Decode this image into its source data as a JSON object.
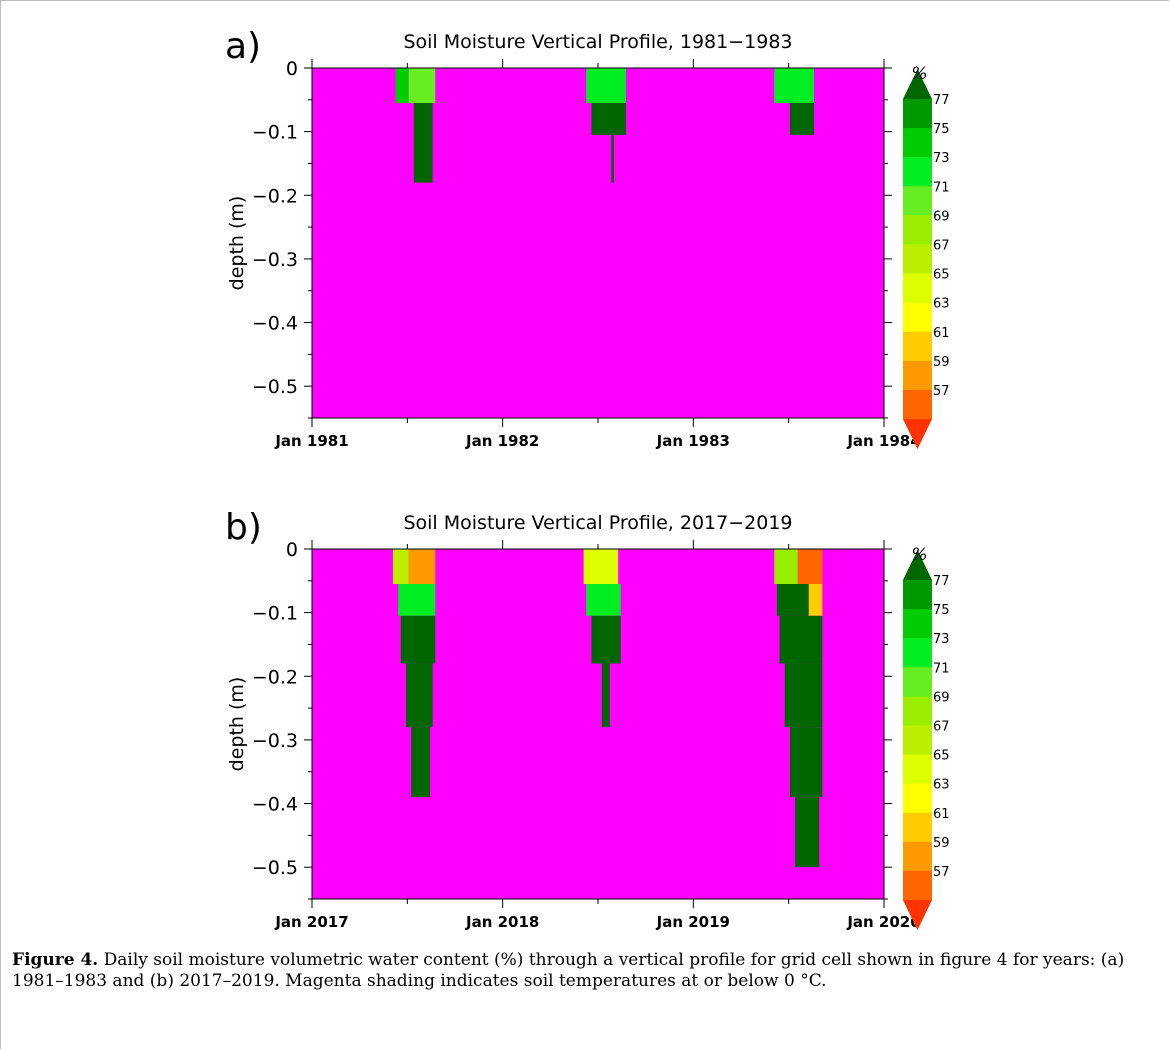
{
  "colors": {
    "frozen": "#ff00ff",
    "scale": [
      "#ff3300",
      "#ff6600",
      "#ff9900",
      "#ffcc00",
      "#ffff00",
      "#ddff00",
      "#bbee00",
      "#99ee00",
      "#66ee22",
      "#00ee22",
      "#00cc00",
      "#009900",
      "#006600"
    ]
  },
  "panels": [
    {
      "label": "a)",
      "title": "Soil Moisture Vertical Profile, 1981−1983",
      "ylabel": "depth (m)",
      "xticks": [
        "Jan 1981",
        "Jan 1982",
        "Jan 1983",
        "Jan 1984"
      ],
      "yticks": [
        "0",
        "−0.1",
        "−0.2",
        "−0.3",
        "−0.4",
        "−0.5"
      ],
      "ytick_values": [
        0,
        -0.1,
        -0.2,
        -0.3,
        -0.4,
        -0.5
      ],
      "colorbar_unit": "%",
      "colorbar_labels": [
        "77",
        "75",
        "73",
        "71",
        "69",
        "67",
        "65",
        "63",
        "61",
        "59",
        "57"
      ]
    },
    {
      "label": "b)",
      "title": "Soil Moisture Vertical Profile, 2017−2019",
      "ylabel": "depth (m)",
      "xticks": [
        "Jan 2017",
        "Jan 2018",
        "Jan 2019",
        "Jan 2020"
      ],
      "yticks": [
        "0",
        "−0.1",
        "−0.2",
        "−0.3",
        "−0.4",
        "−0.5"
      ],
      "ytick_values": [
        0,
        -0.1,
        -0.2,
        -0.3,
        -0.4,
        -0.5
      ],
      "colorbar_unit": "%",
      "colorbar_labels": [
        "77",
        "75",
        "73",
        "71",
        "69",
        "67",
        "65",
        "63",
        "61",
        "59",
        "57"
      ]
    }
  ],
  "chart_data": [
    {
      "type": "heatmap",
      "title": "Soil Moisture Vertical Profile, 1981−1983",
      "ylabel": "depth (m)",
      "x_range": [
        "1981-01-01",
        "1984-01-01"
      ],
      "ylim": [
        -0.55,
        0
      ],
      "cells": [
        {
          "x0": "1981-06-10",
          "x1": "1981-07-05",
          "y0": -0.055,
          "y1": 0,
          "value": 76
        },
        {
          "x0": "1981-07-05",
          "x1": "1981-08-25",
          "y0": -0.055,
          "y1": 0,
          "value": 72
        },
        {
          "x0": "1981-07-15",
          "x1": "1981-08-20",
          "y0": -0.18,
          "y1": -0.055,
          "value": 77
        },
        {
          "x0": "1982-06-10",
          "x1": "1982-08-25",
          "y0": -0.055,
          "y1": 0,
          "value": 73
        },
        {
          "x0": "1982-06-20",
          "x1": "1982-08-25",
          "y0": -0.105,
          "y1": -0.055,
          "value": 77
        },
        {
          "x0": "1982-07-28",
          "x1": "1982-08-02",
          "y0": -0.18,
          "y1": -0.105,
          "value": 77
        },
        {
          "x0": "1983-06-05",
          "x1": "1983-08-20",
          "y0": -0.055,
          "y1": 0,
          "value": 73
        },
        {
          "x0": "1983-07-05",
          "x1": "1983-08-20",
          "y0": -0.105,
          "y1": -0.055,
          "value": 77
        }
      ]
    },
    {
      "type": "heatmap",
      "title": "Soil Moisture Vertical Profile, 2017−2019",
      "ylabel": "depth (m)",
      "x_range": [
        "2017-01-01",
        "2020-01-01"
      ],
      "ylim": [
        -0.55,
        0
      ],
      "cells": [
        {
          "x0": "2017-06-05",
          "x1": "2017-07-05",
          "y0": -0.055,
          "y1": 0,
          "value": 67
        },
        {
          "x0": "2017-07-05",
          "x1": "2017-08-25",
          "y0": -0.055,
          "y1": 0,
          "value": 60
        },
        {
          "x0": "2017-06-15",
          "x1": "2017-08-25",
          "y0": -0.105,
          "y1": -0.055,
          "value": 73
        },
        {
          "x0": "2017-06-20",
          "x1": "2017-08-25",
          "y0": -0.18,
          "y1": -0.105,
          "value": 77
        },
        {
          "x0": "2017-06-30",
          "x1": "2017-08-20",
          "y0": -0.28,
          "y1": -0.18,
          "value": 77
        },
        {
          "x0": "2017-07-10",
          "x1": "2017-08-15",
          "y0": -0.39,
          "y1": -0.28,
          "value": 77
        },
        {
          "x0": "2018-06-05",
          "x1": "2018-08-10",
          "y0": -0.055,
          "y1": 0,
          "value": 66
        },
        {
          "x0": "2018-06-10",
          "x1": "2018-08-15",
          "y0": -0.105,
          "y1": -0.055,
          "value": 73
        },
        {
          "x0": "2018-06-20",
          "x1": "2018-08-15",
          "y0": -0.18,
          "y1": -0.105,
          "value": 77
        },
        {
          "x0": "2018-07-10",
          "x1": "2018-07-25",
          "y0": -0.28,
          "y1": -0.18,
          "value": 77
        },
        {
          "x0": "2019-06-05",
          "x1": "2019-07-20",
          "y0": -0.055,
          "y1": 0,
          "value": 70
        },
        {
          "x0": "2019-07-20",
          "x1": "2019-09-05",
          "y0": -0.055,
          "y1": 0,
          "value": 57
        },
        {
          "x0": "2019-06-10",
          "x1": "2019-08-10",
          "y0": -0.105,
          "y1": -0.055,
          "value": 77
        },
        {
          "x0": "2019-08-10",
          "x1": "2019-09-05",
          "y0": -0.105,
          "y1": -0.055,
          "value": 62
        },
        {
          "x0": "2019-06-15",
          "x1": "2019-09-05",
          "y0": -0.18,
          "y1": -0.105,
          "value": 77
        },
        {
          "x0": "2019-06-25",
          "x1": "2019-09-05",
          "y0": -0.28,
          "y1": -0.18,
          "value": 77
        },
        {
          "x0": "2019-07-05",
          "x1": "2019-09-05",
          "y0": -0.39,
          "y1": -0.28,
          "value": 77
        },
        {
          "x0": "2019-07-15",
          "x1": "2019-08-30",
          "y0": -0.5,
          "y1": -0.39,
          "value": 77
        }
      ]
    }
  ],
  "caption": {
    "label": "Figure 4.",
    "text": " Daily soil moisture volumetric water content (%) through a vertical profile for grid cell shown in figure 4 for years: (a) 1981–1983 and (b) 2017–2019. Magenta shading indicates soil temperatures at or below 0 °C."
  }
}
